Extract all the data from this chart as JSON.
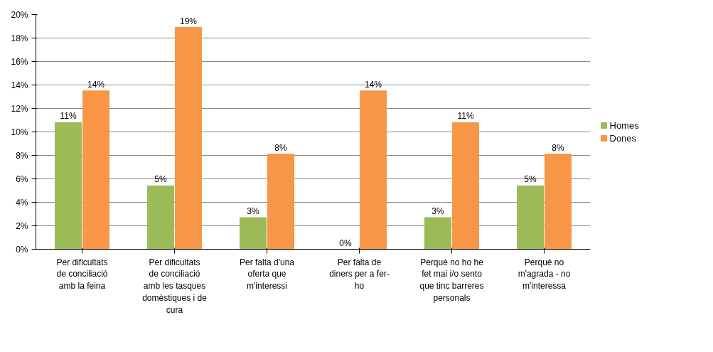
{
  "chart_data": {
    "type": "bar",
    "categories": [
      "Per dificultats de conciliació amb la feina",
      "Per dificultats de conciliació amb les tasques domèstiques i de cura",
      "Per falta d'una oferta que m'interessi",
      "Per falta de diners per a fer-ho",
      "Perquè no ho he fet mai i/o sento que tinc barreres personals",
      "Perquè no m'agrada - no m'interessa"
    ],
    "series": [
      {
        "name": "Homes",
        "color": "#9bbb59",
        "values": [
          10.8,
          5.4,
          2.7,
          0,
          2.7,
          5.4
        ],
        "value_labels": [
          "11%",
          "5%",
          "3%",
          "0%",
          "3%",
          "5%"
        ]
      },
      {
        "name": "Dones",
        "color": "#f79646",
        "values": [
          13.5,
          18.9,
          8.1,
          13.5,
          10.8,
          8.1
        ],
        "value_labels": [
          "14%",
          "19%",
          "8%",
          "14%",
          "11%",
          "8%"
        ]
      }
    ],
    "ylim": [
      0,
      20
    ],
    "yticks": [
      {
        "value": 0,
        "label": "0%"
      },
      {
        "value": 2,
        "label": "2%"
      },
      {
        "value": 4,
        "label": "4%"
      },
      {
        "value": 6,
        "label": "6%"
      },
      {
        "value": 8,
        "label": "8%"
      },
      {
        "value": 10,
        "label": "10%"
      },
      {
        "value": 12,
        "label": "12%"
      },
      {
        "value": 14,
        "label": "14%"
      },
      {
        "value": 16,
        "label": "16%"
      },
      {
        "value": 18,
        "label": "18%"
      },
      {
        "value": 20,
        "label": "20%"
      }
    ],
    "grid": "y",
    "legend": "right"
  }
}
